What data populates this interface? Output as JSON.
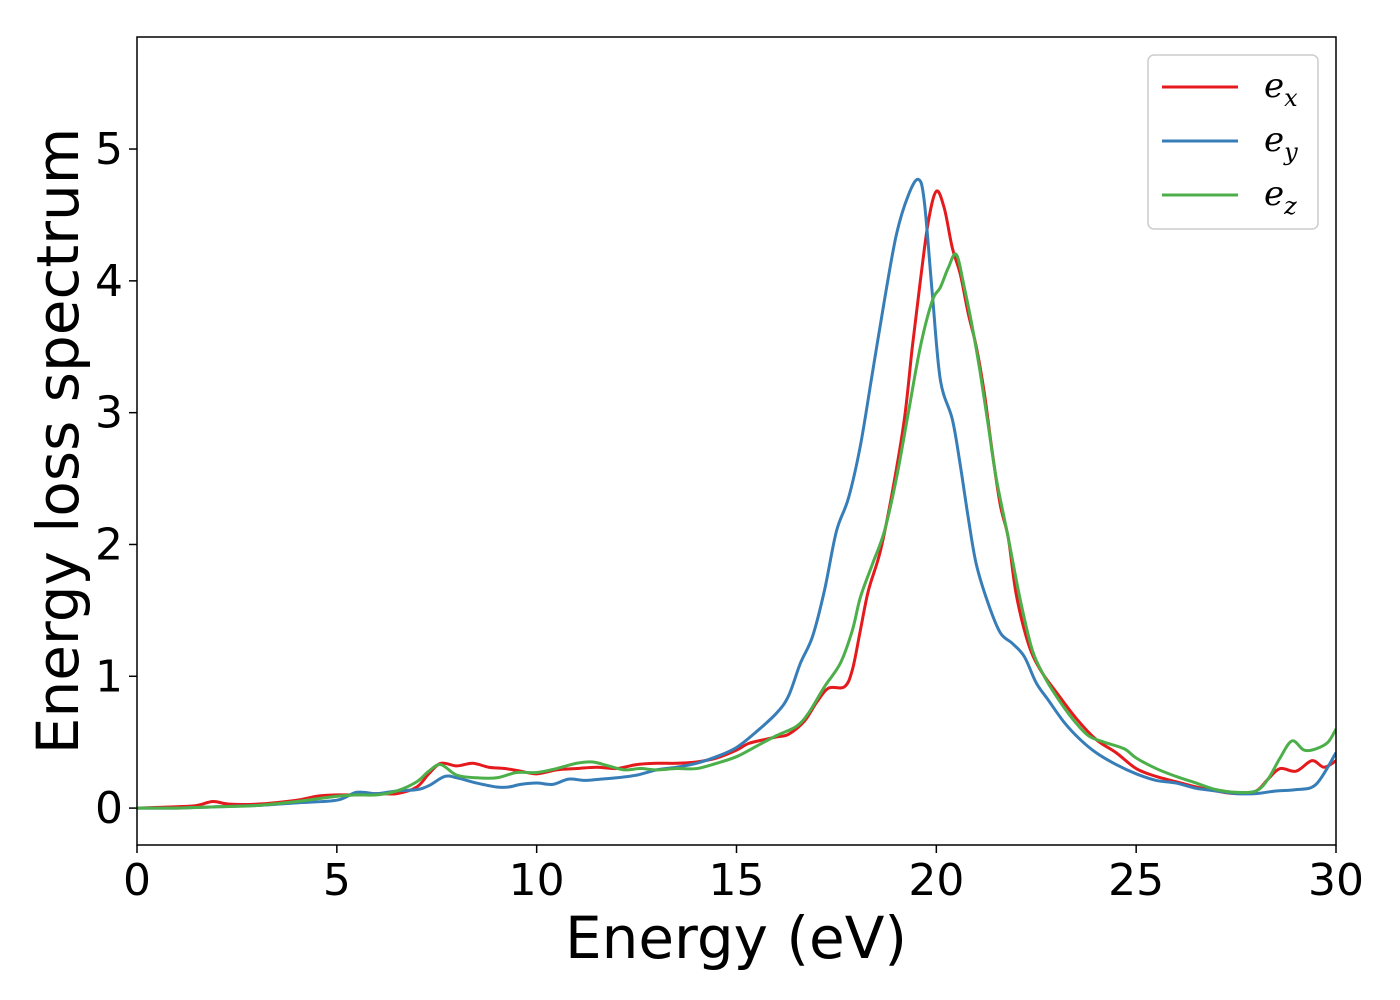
{
  "chart_data": {
    "type": "line",
    "title": "",
    "xlabel": "Energy (eV)",
    "ylabel": "Energy loss spectrum",
    "xlim": [
      0,
      30
    ],
    "ylim": [
      -0.28,
      5.85
    ],
    "xticks": [
      0,
      5,
      10,
      15,
      20,
      25,
      30
    ],
    "yticks": [
      0,
      1,
      2,
      3,
      4,
      5
    ],
    "xtick_labels": [
      "0",
      "5",
      "10",
      "15",
      "20",
      "25",
      "30"
    ],
    "ytick_labels": [
      "0",
      "1",
      "2",
      "3",
      "4",
      "5"
    ],
    "grid": false,
    "legend_position": "top-right",
    "series": [
      {
        "name": "e_x",
        "label_main": "e",
        "label_sub": "x",
        "color": "#e41a1c",
        "points": [
          [
            0,
            0.0
          ],
          [
            1,
            0.01
          ],
          [
            1.5,
            0.02
          ],
          [
            1.9,
            0.05
          ],
          [
            2.3,
            0.03
          ],
          [
            3,
            0.03
          ],
          [
            4,
            0.06
          ],
          [
            4.5,
            0.09
          ],
          [
            5,
            0.1
          ],
          [
            5.5,
            0.1
          ],
          [
            6,
            0.11
          ],
          [
            6.5,
            0.11
          ],
          [
            7,
            0.16
          ],
          [
            7.3,
            0.26
          ],
          [
            7.6,
            0.34
          ],
          [
            8,
            0.32
          ],
          [
            8.4,
            0.34
          ],
          [
            8.8,
            0.31
          ],
          [
            9.2,
            0.3
          ],
          [
            9.6,
            0.28
          ],
          [
            10,
            0.26
          ],
          [
            10.5,
            0.29
          ],
          [
            11,
            0.3
          ],
          [
            11.5,
            0.31
          ],
          [
            12,
            0.3
          ],
          [
            12.5,
            0.33
          ],
          [
            13,
            0.34
          ],
          [
            13.5,
            0.34
          ],
          [
            14,
            0.35
          ],
          [
            14.5,
            0.38
          ],
          [
            15,
            0.44
          ],
          [
            15.3,
            0.49
          ],
          [
            15.7,
            0.52
          ],
          [
            16,
            0.54
          ],
          [
            16.3,
            0.56
          ],
          [
            16.7,
            0.66
          ],
          [
            17,
            0.8
          ],
          [
            17.3,
            0.91
          ],
          [
            17.7,
            0.92
          ],
          [
            17.9,
            1.05
          ],
          [
            18.1,
            1.35
          ],
          [
            18.3,
            1.65
          ],
          [
            18.6,
            1.95
          ],
          [
            18.9,
            2.4
          ],
          [
            19.2,
            2.95
          ],
          [
            19.4,
            3.5
          ],
          [
            19.6,
            4.0
          ],
          [
            19.8,
            4.45
          ],
          [
            20,
            4.68
          ],
          [
            20.2,
            4.55
          ],
          [
            20.4,
            4.25
          ],
          [
            20.6,
            4.05
          ],
          [
            20.8,
            3.75
          ],
          [
            21,
            3.5
          ],
          [
            21.2,
            3.15
          ],
          [
            21.4,
            2.7
          ],
          [
            21.6,
            2.3
          ],
          [
            21.8,
            2.05
          ],
          [
            22,
            1.62
          ],
          [
            22.3,
            1.25
          ],
          [
            22.6,
            1.05
          ],
          [
            23,
            0.88
          ],
          [
            23.5,
            0.68
          ],
          [
            24,
            0.52
          ],
          [
            24.5,
            0.42
          ],
          [
            25,
            0.3
          ],
          [
            25.5,
            0.24
          ],
          [
            26,
            0.2
          ],
          [
            26.5,
            0.16
          ],
          [
            27,
            0.13
          ],
          [
            27.5,
            0.11
          ],
          [
            28,
            0.13
          ],
          [
            28.3,
            0.22
          ],
          [
            28.6,
            0.3
          ],
          [
            29,
            0.28
          ],
          [
            29.4,
            0.36
          ],
          [
            29.7,
            0.31
          ],
          [
            30,
            0.36
          ]
        ]
      },
      {
        "name": "e_y",
        "label_main": "e",
        "label_sub": "y",
        "color": "#377eb8",
        "points": [
          [
            0,
            0.0
          ],
          [
            1,
            0.0
          ],
          [
            2,
            0.01
          ],
          [
            3,
            0.02
          ],
          [
            4,
            0.04
          ],
          [
            5,
            0.06
          ],
          [
            5.5,
            0.12
          ],
          [
            6,
            0.11
          ],
          [
            6.5,
            0.13
          ],
          [
            7,
            0.14
          ],
          [
            7.3,
            0.17
          ],
          [
            7.7,
            0.24
          ],
          [
            8,
            0.23
          ],
          [
            8.5,
            0.19
          ],
          [
            9,
            0.16
          ],
          [
            9.3,
            0.16
          ],
          [
            9.6,
            0.18
          ],
          [
            10,
            0.19
          ],
          [
            10.4,
            0.18
          ],
          [
            10.8,
            0.22
          ],
          [
            11.2,
            0.21
          ],
          [
            11.6,
            0.22
          ],
          [
            12,
            0.23
          ],
          [
            12.5,
            0.25
          ],
          [
            13,
            0.29
          ],
          [
            13.5,
            0.31
          ],
          [
            14,
            0.34
          ],
          [
            14.5,
            0.39
          ],
          [
            15,
            0.46
          ],
          [
            15.5,
            0.58
          ],
          [
            16,
            0.72
          ],
          [
            16.3,
            0.85
          ],
          [
            16.6,
            1.1
          ],
          [
            16.9,
            1.3
          ],
          [
            17.2,
            1.65
          ],
          [
            17.5,
            2.1
          ],
          [
            17.8,
            2.35
          ],
          [
            18.1,
            2.75
          ],
          [
            18.4,
            3.3
          ],
          [
            18.7,
            3.85
          ],
          [
            19,
            4.35
          ],
          [
            19.3,
            4.65
          ],
          [
            19.55,
            4.77
          ],
          [
            19.7,
            4.6
          ],
          [
            19.9,
            3.9
          ],
          [
            20.1,
            3.25
          ],
          [
            20.4,
            2.95
          ],
          [
            20.6,
            2.6
          ],
          [
            20.8,
            2.2
          ],
          [
            21,
            1.85
          ],
          [
            21.3,
            1.55
          ],
          [
            21.6,
            1.33
          ],
          [
            21.9,
            1.25
          ],
          [
            22.2,
            1.15
          ],
          [
            22.5,
            0.95
          ],
          [
            22.8,
            0.82
          ],
          [
            23.2,
            0.65
          ],
          [
            23.6,
            0.52
          ],
          [
            24,
            0.42
          ],
          [
            24.5,
            0.33
          ],
          [
            25,
            0.26
          ],
          [
            25.5,
            0.21
          ],
          [
            26,
            0.19
          ],
          [
            26.5,
            0.15
          ],
          [
            27,
            0.13
          ],
          [
            27.5,
            0.11
          ],
          [
            28,
            0.11
          ],
          [
            28.5,
            0.13
          ],
          [
            29,
            0.14
          ],
          [
            29.5,
            0.18
          ],
          [
            30,
            0.42
          ]
        ]
      },
      {
        "name": "e_z",
        "label_main": "e",
        "label_sub": "z",
        "color": "#4daf4a",
        "points": [
          [
            0,
            0.0
          ],
          [
            1,
            0.0
          ],
          [
            2,
            0.01
          ],
          [
            3,
            0.02
          ],
          [
            4,
            0.05
          ],
          [
            5,
            0.09
          ],
          [
            5.5,
            0.1
          ],
          [
            6,
            0.1
          ],
          [
            6.5,
            0.13
          ],
          [
            7,
            0.2
          ],
          [
            7.3,
            0.28
          ],
          [
            7.6,
            0.33
          ],
          [
            8,
            0.25
          ],
          [
            8.5,
            0.23
          ],
          [
            9,
            0.23
          ],
          [
            9.5,
            0.27
          ],
          [
            10,
            0.27
          ],
          [
            10.5,
            0.3
          ],
          [
            11,
            0.34
          ],
          [
            11.4,
            0.35
          ],
          [
            11.8,
            0.32
          ],
          [
            12.2,
            0.29
          ],
          [
            12.6,
            0.3
          ],
          [
            13,
            0.29
          ],
          [
            13.5,
            0.3
          ],
          [
            14,
            0.3
          ],
          [
            14.5,
            0.34
          ],
          [
            15,
            0.39
          ],
          [
            15.5,
            0.47
          ],
          [
            16,
            0.55
          ],
          [
            16.5,
            0.62
          ],
          [
            16.8,
            0.72
          ],
          [
            17.2,
            0.92
          ],
          [
            17.6,
            1.1
          ],
          [
            17.9,
            1.35
          ],
          [
            18.1,
            1.6
          ],
          [
            18.4,
            1.85
          ],
          [
            18.7,
            2.1
          ],
          [
            19,
            2.5
          ],
          [
            19.3,
            3.0
          ],
          [
            19.6,
            3.5
          ],
          [
            19.9,
            3.85
          ],
          [
            20.1,
            3.95
          ],
          [
            20.3,
            4.1
          ],
          [
            20.5,
            4.2
          ],
          [
            20.7,
            3.95
          ],
          [
            20.9,
            3.65
          ],
          [
            21.1,
            3.3
          ],
          [
            21.3,
            2.9
          ],
          [
            21.5,
            2.5
          ],
          [
            21.8,
            2.05
          ],
          [
            22.1,
            1.58
          ],
          [
            22.4,
            1.2
          ],
          [
            22.7,
            1.0
          ],
          [
            23,
            0.85
          ],
          [
            23.4,
            0.68
          ],
          [
            23.8,
            0.55
          ],
          [
            24.2,
            0.5
          ],
          [
            24.7,
            0.45
          ],
          [
            25,
            0.38
          ],
          [
            25.5,
            0.3
          ],
          [
            26,
            0.24
          ],
          [
            26.5,
            0.19
          ],
          [
            27,
            0.14
          ],
          [
            27.5,
            0.12
          ],
          [
            28,
            0.13
          ],
          [
            28.3,
            0.22
          ],
          [
            28.6,
            0.38
          ],
          [
            28.9,
            0.51
          ],
          [
            29.2,
            0.44
          ],
          [
            29.5,
            0.45
          ],
          [
            29.8,
            0.5
          ],
          [
            30,
            0.6
          ]
        ]
      }
    ]
  }
}
